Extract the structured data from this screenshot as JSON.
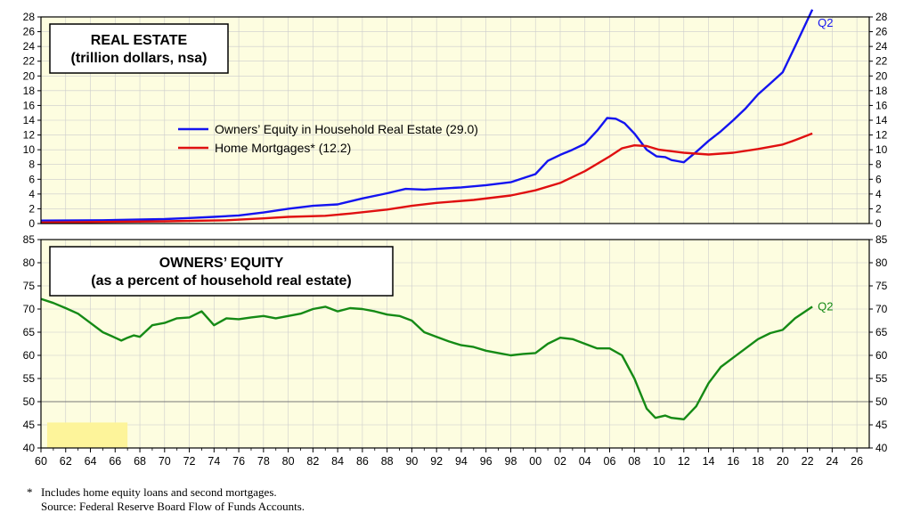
{
  "colors": {
    "panel_bg": "#fdfde0",
    "grid": "#cccccc",
    "equity_line": "#1414f0",
    "mortgage_line": "#e01010",
    "pct_line": "#158a15",
    "shade": "#fdf49a"
  },
  "chart_data": [
    {
      "type": "line",
      "title": "REAL ESTATE",
      "subtitle": "(trillion dollars, nsa)",
      "ylim": [
        0,
        28
      ],
      "yticks": [
        "0",
        "2",
        "4",
        "6",
        "8",
        "10",
        "12",
        "14",
        "16",
        "18",
        "20",
        "22",
        "24",
        "26",
        "28"
      ],
      "end_label": "Q2",
      "series": [
        {
          "name": "Owners’ Equity in Household Real Estate (29.0)",
          "color": "#1414f0",
          "points": [
            [
              1960,
              0.4
            ],
            [
              1965,
              0.45
            ],
            [
              1970,
              0.6
            ],
            [
              1972,
              0.75
            ],
            [
              1974,
              0.9
            ],
            [
              1976,
              1.1
            ],
            [
              1978,
              1.5
            ],
            [
              1980,
              2.0
            ],
            [
              1982,
              2.4
            ],
            [
              1984,
              2.6
            ],
            [
              1986,
              3.4
            ],
            [
              1988,
              4.1
            ],
            [
              1989.5,
              4.7
            ],
            [
              1991,
              4.6
            ],
            [
              1992,
              4.7
            ],
            [
              1994,
              4.9
            ],
            [
              1996,
              5.2
            ],
            [
              1998,
              5.6
            ],
            [
              2000,
              6.7
            ],
            [
              2001,
              8.5
            ],
            [
              2002,
              9.3
            ],
            [
              2003,
              10.0
            ],
            [
              2004,
              10.8
            ],
            [
              2005,
              12.6
            ],
            [
              2005.8,
              14.3
            ],
            [
              2006.5,
              14.2
            ],
            [
              2007.2,
              13.6
            ],
            [
              2008,
              12.2
            ],
            [
              2009,
              10.0
            ],
            [
              2009.8,
              9.1
            ],
            [
              2010.5,
              9.0
            ],
            [
              2011,
              8.6
            ],
            [
              2012,
              8.3
            ],
            [
              2013,
              9.7
            ],
            [
              2014,
              11.2
            ],
            [
              2015,
              12.5
            ],
            [
              2016,
              14.0
            ],
            [
              2017,
              15.6
            ],
            [
              2018,
              17.5
            ],
            [
              2019,
              19.0
            ],
            [
              2020,
              20.5
            ],
            [
              2021,
              24.0
            ],
            [
              2022.4,
              29.0
            ]
          ]
        },
        {
          "name": "Home Mortgages* (12.2)",
          "color": "#e01010",
          "points": [
            [
              1960,
              0.15
            ],
            [
              1970,
              0.3
            ],
            [
              1975,
              0.45
            ],
            [
              1978,
              0.7
            ],
            [
              1980,
              0.9
            ],
            [
              1983,
              1.05
            ],
            [
              1985,
              1.35
            ],
            [
              1988,
              1.9
            ],
            [
              1990,
              2.4
            ],
            [
              1992,
              2.8
            ],
            [
              1995,
              3.2
            ],
            [
              1998,
              3.8
            ],
            [
              2000,
              4.5
            ],
            [
              2002,
              5.5
            ],
            [
              2004,
              7.1
            ],
            [
              2006,
              9.1
            ],
            [
              2007,
              10.2
            ],
            [
              2008,
              10.6
            ],
            [
              2009,
              10.5
            ],
            [
              2010,
              10.0
            ],
            [
              2012,
              9.6
            ],
            [
              2014,
              9.35
            ],
            [
              2016,
              9.6
            ],
            [
              2018,
              10.1
            ],
            [
              2020,
              10.7
            ],
            [
              2021,
              11.3
            ],
            [
              2022.4,
              12.2
            ]
          ]
        }
      ]
    },
    {
      "type": "line",
      "title": "OWNERS’ EQUITY",
      "subtitle": "(as a percent of household real estate)",
      "ylim": [
        40,
        85
      ],
      "yticks": [
        "40",
        "45",
        "50",
        "55",
        "60",
        "65",
        "70",
        "75",
        "80",
        "85"
      ],
      "reference_line": 50,
      "end_label": "Q2",
      "shaded_region": {
        "x": [
          1960.5,
          1967
        ],
        "y": [
          40,
          45.5
        ]
      },
      "series": [
        {
          "name": "",
          "color": "#158a15",
          "points": [
            [
              1960,
              72.2
            ],
            [
              1961,
              71.3
            ],
            [
              1962,
              70.2
            ],
            [
              1963,
              69.0
            ],
            [
              1964,
              67.0
            ],
            [
              1965,
              65.0
            ],
            [
              1966,
              63.8
            ],
            [
              1966.5,
              63.2
            ],
            [
              1967,
              63.8
            ],
            [
              1967.5,
              64.3
            ],
            [
              1968,
              64.0
            ],
            [
              1969,
              66.5
            ],
            [
              1970,
              67.0
            ],
            [
              1971,
              68.0
            ],
            [
              1972,
              68.2
            ],
            [
              1973,
              69.5
            ],
            [
              1974,
              66.5
            ],
            [
              1975,
              68.0
            ],
            [
              1976,
              67.8
            ],
            [
              1977,
              68.2
            ],
            [
              1978,
              68.5
            ],
            [
              1979,
              68.0
            ],
            [
              1980,
              68.5
            ],
            [
              1981,
              69.0
            ],
            [
              1982,
              70.0
            ],
            [
              1983,
              70.5
            ],
            [
              1984,
              69.5
            ],
            [
              1985,
              70.2
            ],
            [
              1986,
              70.0
            ],
            [
              1987,
              69.5
            ],
            [
              1988,
              68.8
            ],
            [
              1989,
              68.5
            ],
            [
              1990,
              67.5
            ],
            [
              1991,
              65.0
            ],
            [
              1992,
              64.0
            ],
            [
              1993,
              63.0
            ],
            [
              1994,
              62.2
            ],
            [
              1995,
              61.8
            ],
            [
              1996,
              61.0
            ],
            [
              1997,
              60.5
            ],
            [
              1998,
              60.0
            ],
            [
              1999,
              60.3
            ],
            [
              2000,
              60.5
            ],
            [
              2001,
              62.5
            ],
            [
              2002,
              63.8
            ],
            [
              2003,
              63.5
            ],
            [
              2004,
              62.5
            ],
            [
              2005,
              61.5
            ],
            [
              2006,
              61.5
            ],
            [
              2007,
              60.0
            ],
            [
              2008,
              55.0
            ],
            [
              2009,
              48.5
            ],
            [
              2009.7,
              46.5
            ],
            [
              2010.5,
              47.0
            ],
            [
              2011,
              46.5
            ],
            [
              2012,
              46.2
            ],
            [
              2013,
              49.0
            ],
            [
              2014,
              54.0
            ],
            [
              2015,
              57.5
            ],
            [
              2016,
              59.5
            ],
            [
              2017,
              61.5
            ],
            [
              2018,
              63.5
            ],
            [
              2019,
              64.8
            ],
            [
              2020,
              65.5
            ],
            [
              2021,
              68.0
            ],
            [
              2022.4,
              70.5
            ]
          ]
        }
      ]
    }
  ],
  "x_axis": {
    "ticks": [
      "60",
      "62",
      "64",
      "66",
      "68",
      "70",
      "72",
      "74",
      "76",
      "78",
      "80",
      "82",
      "84",
      "86",
      "88",
      "90",
      "92",
      "94",
      "96",
      "98",
      "00",
      "02",
      "04",
      "06",
      "08",
      "10",
      "12",
      "14",
      "16",
      "18",
      "20",
      "22",
      "24",
      "26"
    ]
  },
  "footnote": {
    "star": "*",
    "line1": "Includes home equity loans and second mortgages.",
    "line2": "Source: Federal Reserve Board Flow of Funds Accounts."
  }
}
